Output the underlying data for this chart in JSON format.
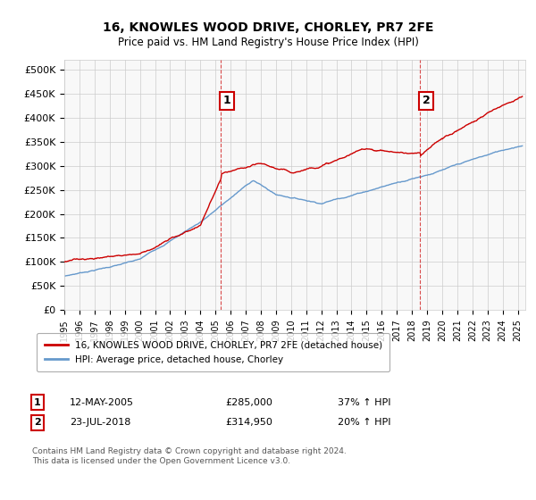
{
  "title": "16, KNOWLES WOOD DRIVE, CHORLEY, PR7 2FE",
  "subtitle": "Price paid vs. HM Land Registry's House Price Index (HPI)",
  "legend_label_red": "16, KNOWLES WOOD DRIVE, CHORLEY, PR7 2FE (detached house)",
  "legend_label_blue": "HPI: Average price, detached house, Chorley",
  "annotation1_label": "1",
  "annotation1_date": "12-MAY-2005",
  "annotation1_price": "£285,000",
  "annotation1_hpi": "37% ↑ HPI",
  "annotation1_year": 2005.37,
  "annotation1_value": 285000,
  "annotation2_label": "2",
  "annotation2_date": "23-JUL-2018",
  "annotation2_price": "£314,950",
  "annotation2_hpi": "20% ↑ HPI",
  "annotation2_year": 2018.55,
  "annotation2_value": 314950,
  "footer": "Contains HM Land Registry data © Crown copyright and database right 2024.\nThis data is licensed under the Open Government Licence v3.0.",
  "ylim": [
    0,
    520000
  ],
  "xlim_start": 1995.0,
  "xlim_end": 2025.5,
  "yticks": [
    0,
    50000,
    100000,
    150000,
    200000,
    250000,
    300000,
    350000,
    400000,
    450000,
    500000
  ],
  "ytick_labels": [
    "£0",
    "£50K",
    "£100K",
    "£150K",
    "£200K",
    "£250K",
    "£300K",
    "£350K",
    "£400K",
    "£450K",
    "£500K"
  ],
  "red_color": "#cc0000",
  "blue_color": "#6699cc",
  "vline_color": "#cc0000",
  "background_color": "#ffffff",
  "grid_color": "#cccccc"
}
